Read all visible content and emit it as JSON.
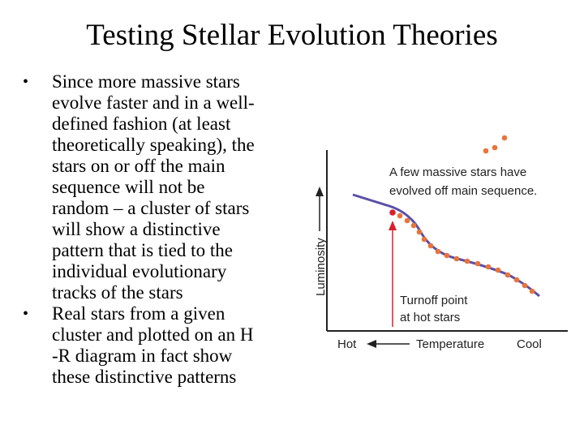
{
  "slide": {
    "title": "Testing Stellar Evolution Theories",
    "bullets": [
      {
        "marker": "•",
        "lines": [
          "Since more massive stars",
          "evolve faster and in a well-",
          "defined fashion (at least",
          "theoretically speaking), the",
          "stars on or off the main",
          "sequence will not be",
          "random – a cluster of stars",
          "will show a distinctive",
          "pattern that is tied to the",
          "individual evolutionary",
          "tracks of the stars"
        ]
      },
      {
        "marker": "•",
        "lines": [
          "Real stars from a given",
          "cluster and plotted on an H",
          "-R diagram in fact show",
          "these distinctive patterns"
        ]
      }
    ]
  },
  "diagram": {
    "y_axis_label": "Luminosity",
    "x_axis_labels": {
      "left": "Hot",
      "center": "Temperature",
      "right": "Cool"
    },
    "annotation_top": [
      "A few massive stars have",
      "evolved off main sequence."
    ],
    "annotation_turnoff": [
      "Turnoff point",
      "at hot stars"
    ],
    "colors": {
      "main_sequence_line": "#5a4fa8",
      "stars": "#e8743a",
      "turnoff": "#d8202c",
      "axes": "#222222"
    }
  }
}
